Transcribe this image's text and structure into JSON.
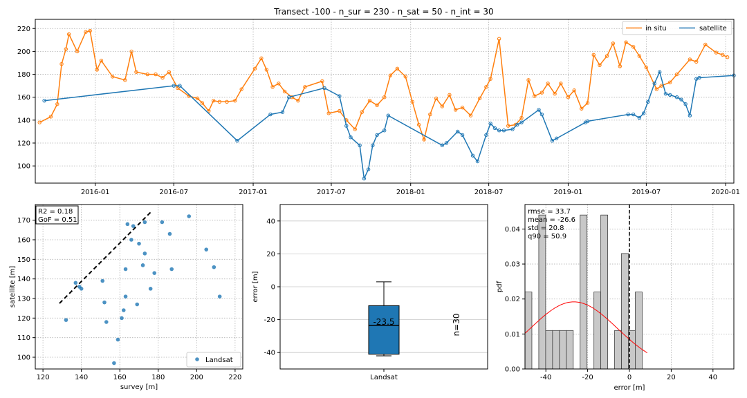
{
  "chart_data": [
    {
      "type": "line",
      "title": "Transect -100 - n_sur = 230 - n_sat = 50 - n_int = 30",
      "xlabel": "",
      "ylabel": "",
      "x_ticks": [
        "2016-01",
        "2016-07",
        "2017-01",
        "2017-07",
        "2018-01",
        "2018-07",
        "2019-01",
        "2019-07",
        "2020-01"
      ],
      "y_ticks": [
        100,
        120,
        140,
        160,
        180,
        200,
        220
      ],
      "ylim": [
        85,
        228
      ],
      "xlim": [
        "2015-08-15",
        "2020-01-20"
      ],
      "grid": true,
      "legend_position": "top-right",
      "series": [
        {
          "name": "in situ",
          "color": "#ff7f0e",
          "x": [
            "2015-08-25",
            "2015-09-20",
            "2015-10-05",
            "2015-10-15",
            "2015-10-25",
            "2015-11-01",
            "2015-11-20",
            "2015-12-10",
            "2015-12-20",
            "2016-01-05",
            "2016-01-15",
            "2016-02-10",
            "2016-03-10",
            "2016-03-25",
            "2016-04-05",
            "2016-05-01",
            "2016-05-20",
            "2016-06-05",
            "2016-06-20",
            "2016-07-10",
            "2016-08-05",
            "2016-08-25",
            "2016-09-05",
            "2016-09-20",
            "2016-10-01",
            "2016-10-15",
            "2016-11-01",
            "2016-11-20",
            "2016-12-05",
            "2017-01-05",
            "2017-01-20",
            "2017-02-01",
            "2017-02-15",
            "2017-03-01",
            "2017-03-15",
            "2017-04-01",
            "2017-04-15",
            "2017-05-01",
            "2017-06-10",
            "2017-06-25",
            "2017-07-20",
            "2017-08-05",
            "2017-08-25",
            "2017-09-10",
            "2017-09-28",
            "2017-10-15",
            "2017-11-01",
            "2017-11-15",
            "2017-12-01",
            "2017-12-20",
            "2018-01-05",
            "2018-01-20",
            "2018-02-01",
            "2018-02-15",
            "2018-03-01",
            "2018-03-15",
            "2018-04-01",
            "2018-04-15",
            "2018-05-01",
            "2018-05-20",
            "2018-06-10",
            "2018-06-25",
            "2018-07-05",
            "2018-07-25",
            "2018-08-15",
            "2018-09-01",
            "2018-09-15",
            "2018-10-01",
            "2018-10-15",
            "2018-11-01",
            "2018-11-15",
            "2018-12-01",
            "2018-12-15",
            "2019-01-01",
            "2019-01-15",
            "2019-02-01",
            "2019-02-15",
            "2019-03-01",
            "2019-03-15",
            "2019-04-01",
            "2019-04-15",
            "2019-05-01",
            "2019-05-15",
            "2019-06-01",
            "2019-06-15",
            "2019-07-01",
            "2019-07-25",
            "2019-08-05",
            "2019-08-25",
            "2019-09-10",
            "2019-10-10",
            "2019-10-25",
            "2019-11-15",
            "2019-12-10",
            "2019-12-25",
            "2020-01-05"
          ],
          "y": [
            138,
            143,
            154,
            189,
            202,
            215,
            200,
            217,
            218,
            184,
            192,
            178,
            175,
            200,
            182,
            180,
            180,
            177,
            182,
            168,
            161,
            159,
            155,
            148,
            157,
            156,
            156,
            157,
            167,
            185,
            194,
            184,
            169,
            172,
            165,
            160,
            157,
            169,
            174,
            146,
            148,
            140,
            132,
            147,
            157,
            153,
            160,
            179,
            185,
            178,
            156,
            136,
            123,
            145,
            159,
            152,
            162,
            149,
            151,
            144,
            159,
            169,
            176,
            211,
            135,
            136,
            142,
            175,
            161,
            164,
            172,
            163,
            172,
            160,
            166,
            150,
            155,
            197,
            188,
            196,
            207,
            187,
            208,
            204,
            196,
            186,
            167,
            170,
            173,
            180,
            193,
            191,
            206,
            199,
            197,
            195
          ]
        },
        {
          "name": "satellite",
          "color": "#1f77b4",
          "x": [
            "2015-09-05",
            "2016-07-01",
            "2016-07-15",
            "2016-11-25",
            "2017-02-10",
            "2017-03-10",
            "2017-03-25",
            "2017-06-15",
            "2017-07-20",
            "2017-08-05",
            "2017-08-15",
            "2017-09-05",
            "2017-09-15",
            "2017-09-25",
            "2017-10-05",
            "2017-10-15",
            "2017-11-01",
            "2017-11-10",
            "2018-03-15",
            "2018-03-25",
            "2018-04-20",
            "2018-05-01",
            "2018-05-25",
            "2018-06-05",
            "2018-06-25",
            "2018-07-05",
            "2018-07-15",
            "2018-07-25",
            "2018-08-05",
            "2018-08-25",
            "2018-09-05",
            "2018-09-15",
            "2018-10-25",
            "2018-11-01",
            "2018-11-25",
            "2018-12-05",
            "2019-02-10",
            "2019-02-15",
            "2019-05-20",
            "2019-06-01",
            "2019-06-15",
            "2019-06-25",
            "2019-07-05",
            "2019-07-20",
            "2019-08-01",
            "2019-08-15",
            "2019-08-25",
            "2019-09-10",
            "2019-09-20",
            "2019-09-30",
            "2019-10-10",
            "2019-10-25",
            "2019-11-01",
            "2020-01-20"
          ],
          "y": [
            157,
            170,
            170,
            122,
            145,
            147,
            160,
            168,
            161,
            135,
            125,
            118,
            89,
            97,
            118,
            127,
            131,
            144,
            118,
            120,
            130,
            127,
            109,
            104,
            127,
            137,
            133,
            131,
            131,
            132,
            136,
            138,
            149,
            145,
            122,
            124,
            138,
            139,
            145,
            145,
            142,
            146,
            156,
            172,
            182,
            163,
            162,
            160,
            158,
            154,
            144,
            176,
            177,
            179
          ]
        }
      ]
    },
    {
      "type": "scatter",
      "title": "",
      "xlabel": "survey [m]",
      "ylabel": "satellite [m]",
      "xlim": [
        116,
        224
      ],
      "ylim": [
        94,
        178
      ],
      "x_ticks": [
        120,
        140,
        160,
        180,
        200,
        220
      ],
      "y_ticks": [
        100,
        110,
        120,
        130,
        140,
        150,
        160,
        170
      ],
      "grid": true,
      "legend_position": "bottom-right",
      "annotation": [
        "R2 = 0.18",
        "GoF = 0.51"
      ],
      "identity_line": [
        [
          128,
          128
        ],
        [
          176,
          176
        ]
      ],
      "series": [
        {
          "name": "Landsat",
          "color": "#1f77b4",
          "x": [
            132,
            137,
            139,
            140,
            151,
            152,
            153,
            157,
            159,
            161,
            162,
            163,
            163,
            164,
            166,
            167,
            169,
            170,
            172,
            173,
            173,
            176,
            178,
            182,
            186,
            187,
            196,
            205,
            209,
            212
          ],
          "y": [
            119,
            138,
            136,
            135,
            139,
            128,
            118,
            97,
            109,
            120,
            124,
            131,
            145,
            168,
            160,
            167,
            127,
            158,
            147,
            153,
            169,
            135,
            143,
            169,
            163,
            145,
            172,
            155,
            146,
            131
          ]
        }
      ]
    },
    {
      "type": "box",
      "title": "",
      "xlabel": "",
      "ylabel": "error [m]",
      "ylim": [
        -50,
        50
      ],
      "y_ticks": [
        -40,
        -20,
        0,
        20,
        40
      ],
      "grid": true,
      "category": "Landsat",
      "box": {
        "q1": -41,
        "median": -23.5,
        "q3": -11.5,
        "whisker_low": -42,
        "whisker_high": 3
      },
      "median_label": "-23.5",
      "count_label": "n=30",
      "color": "#1f77b4"
    },
    {
      "type": "bar",
      "title": "",
      "xlabel": "error [m]",
      "ylabel": "pdf",
      "xlim": [
        -50,
        50
      ],
      "ylim": [
        0,
        0.047
      ],
      "x_ticks": [
        -40,
        -20,
        0,
        20,
        40
      ],
      "y_ticks": [
        0.0,
        0.01,
        0.02,
        0.03,
        0.04
      ],
      "grid": true,
      "bin_width": 3.3,
      "bins": [
        {
          "left": -50.0,
          "value": 0.022
        },
        {
          "left": -46.7,
          "value": 0.0
        },
        {
          "left": -43.4,
          "value": 0.044
        },
        {
          "left": -40.1,
          "value": 0.011
        },
        {
          "left": -36.8,
          "value": 0.011
        },
        {
          "left": -33.5,
          "value": 0.011
        },
        {
          "left": -30.2,
          "value": 0.011
        },
        {
          "left": -26.9,
          "value": 0.0
        },
        {
          "left": -23.6,
          "value": 0.044
        },
        {
          "left": -20.3,
          "value": 0.0
        },
        {
          "left": -17.0,
          "value": 0.022
        },
        {
          "left": -13.7,
          "value": 0.044
        },
        {
          "left": -10.4,
          "value": 0.0
        },
        {
          "left": -7.1,
          "value": 0.011
        },
        {
          "left": -3.8,
          "value": 0.033
        },
        {
          "left": -0.5,
          "value": 0.011
        },
        {
          "left": 2.8,
          "value": 0.022
        }
      ],
      "normal_fit": {
        "mean": -26.6,
        "std": 20.8,
        "x_from": -50,
        "x_to": 8.5,
        "color": "#ff0000"
      },
      "zero_line": 0,
      "stats": [
        "rmse = 33.7",
        "mean = -26.6",
        "std = 20.8",
        "q90 = 50.9"
      ]
    }
  ]
}
